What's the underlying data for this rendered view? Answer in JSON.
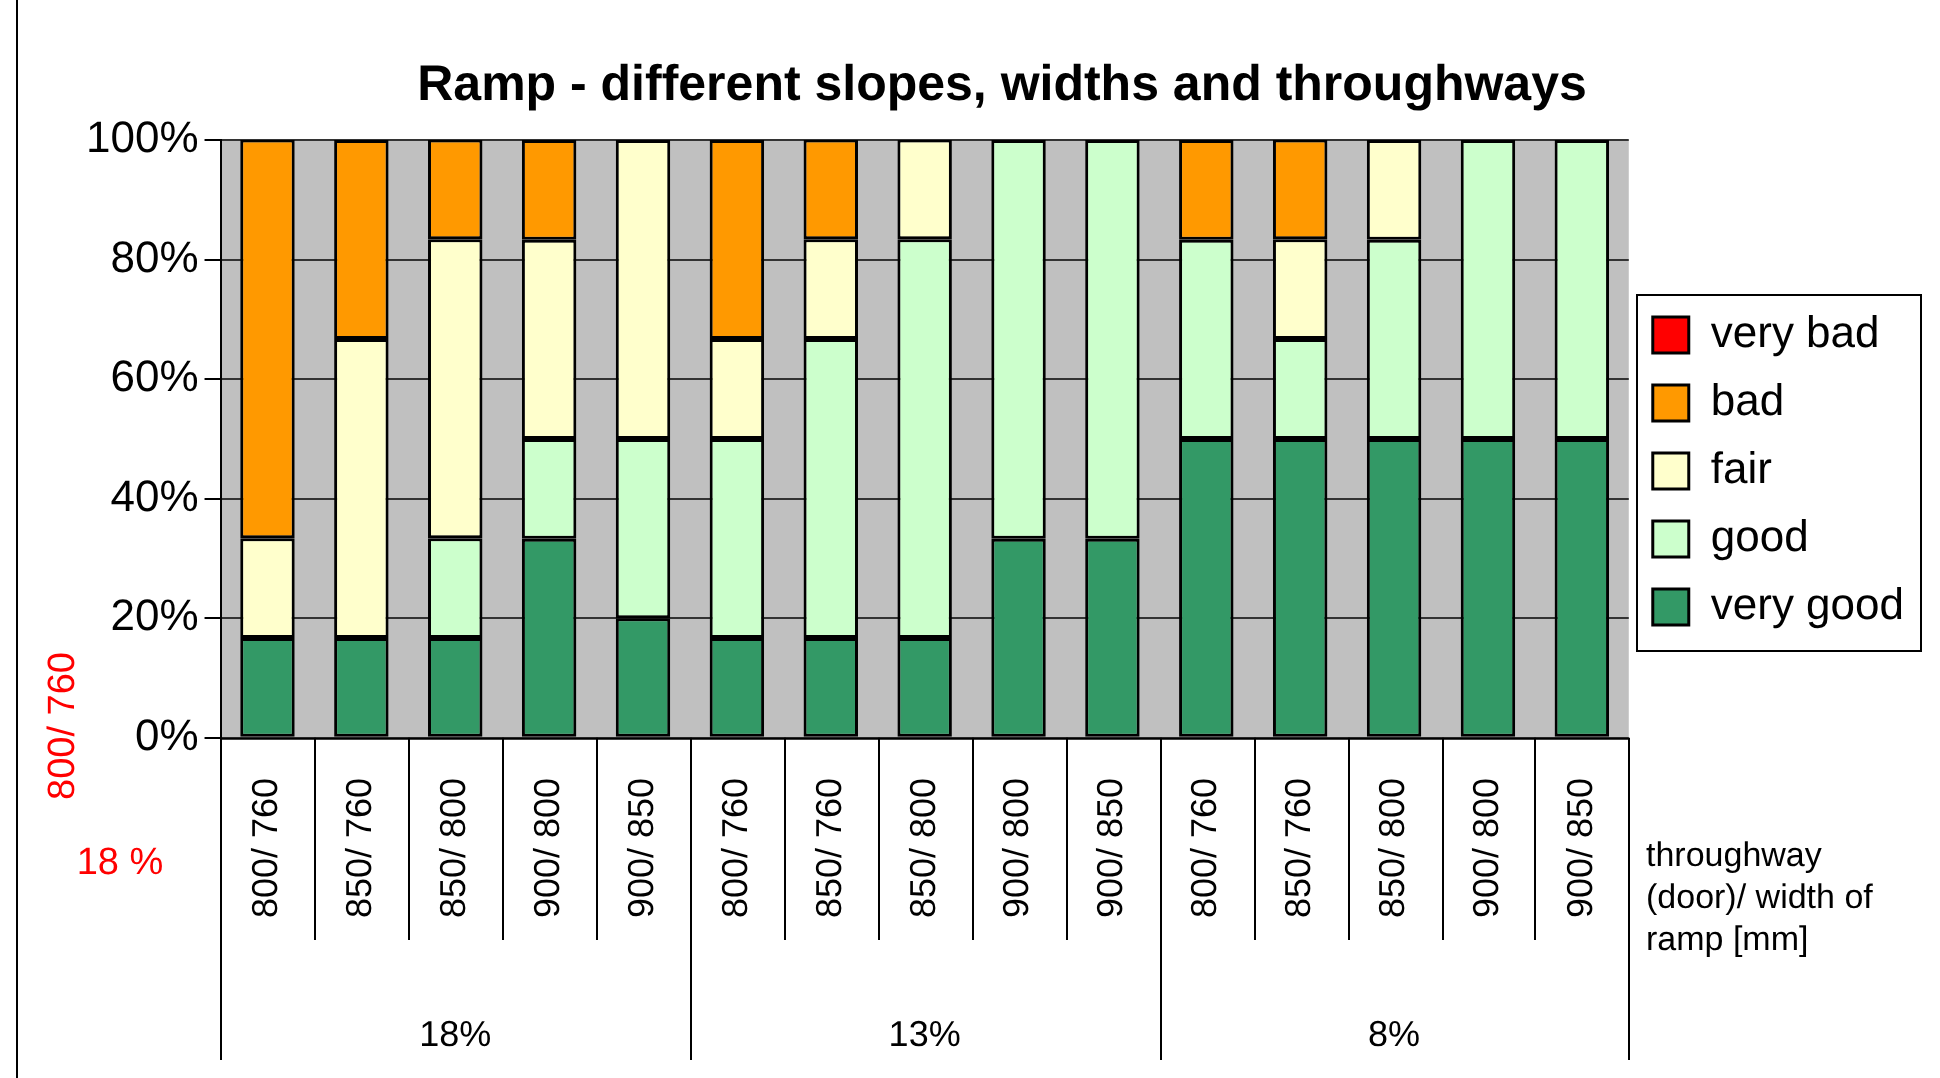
{
  "chart_data": {
    "type": "bar",
    "title": "Ramp - different slopes, widths and throughways",
    "xlabel": "throughway (door)/ width of ramp [mm]",
    "stacked": true,
    "legend": "right",
    "grid": "y",
    "categories": [
      "800/ 760",
      "850/ 760",
      "850/ 800",
      "900/ 800",
      "900/ 850",
      "800/ 760",
      "850/ 760",
      "850/ 800",
      "900/ 800",
      "900/ 850",
      "800/ 760",
      "850/ 760",
      "850/ 800",
      "900/ 800",
      "900/ 850"
    ],
    "series": [
      {
        "name": "very good",
        "color": "#339966",
        "values": [
          16.7,
          16.7,
          16.7,
          33.3,
          20,
          16.7,
          16.7,
          16.7,
          33.3,
          33.3,
          50,
          50,
          50,
          50,
          50
        ]
      },
      {
        "name": "good",
        "color": "#ccffcc",
        "values": [
          0,
          0,
          16.7,
          16.7,
          30,
          33.3,
          50,
          66.7,
          66.7,
          66.7,
          33.3,
          16.7,
          33.3,
          50,
          50
        ]
      },
      {
        "name": "fair",
        "color": "#ffffcc",
        "values": [
          16.7,
          50,
          50,
          33.3,
          50,
          16.7,
          16.7,
          16.7,
          0,
          0,
          0,
          16.7,
          16.7,
          0,
          0
        ]
      },
      {
        "name": "bad",
        "color": "#ff9900",
        "values": [
          66.7,
          33.3,
          16.7,
          16.7,
          0,
          33.3,
          16.7,
          0,
          0,
          0,
          16.7,
          16.7,
          0,
          0,
          0
        ]
      },
      {
        "name": "very bad",
        "color": "#ff0000",
        "values": [
          0,
          0,
          0,
          0,
          0,
          0,
          0,
          0,
          0,
          0,
          0,
          0,
          0,
          0,
          0
        ]
      }
    ],
    "ylim": [
      0,
      100
    ],
    "yticks": [
      {
        "value": 0,
        "label": "0%"
      },
      {
        "value": 20,
        "label": "20%"
      },
      {
        "value": 40,
        "label": "40%"
      },
      {
        "value": 60,
        "label": "60%"
      },
      {
        "value": 80,
        "label": "80%"
      },
      {
        "value": 100,
        "label": "100%"
      }
    ],
    "annotations": [
      "18%",
      "13%",
      "8%",
      "800/ 760",
      "18 %"
    ]
  }
}
